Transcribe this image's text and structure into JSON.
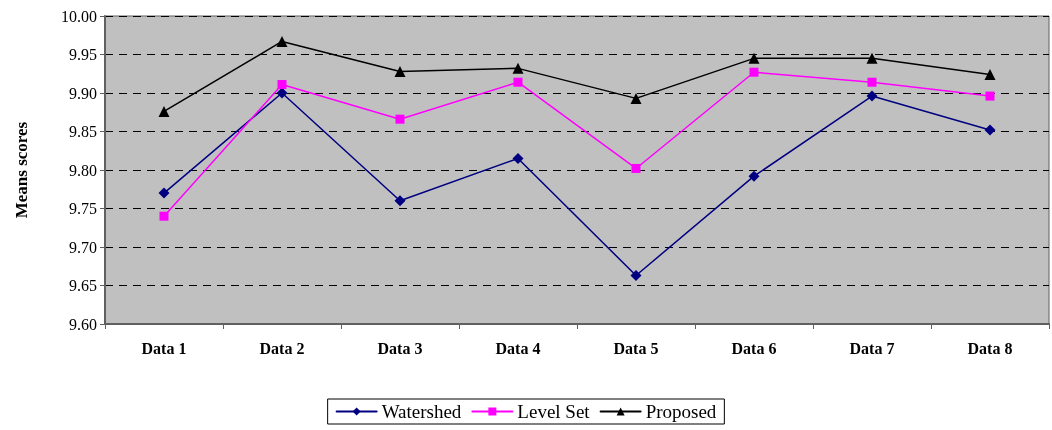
{
  "chart_data": {
    "type": "line",
    "ylabel": "Means scores",
    "categories": [
      "Data 1",
      "Data 2",
      "Data 3",
      "Data 4",
      "Data 5",
      "Data 6",
      "Data 7",
      "Data 8"
    ],
    "series": [
      {
        "name": "Watershed",
        "color": "#000080",
        "marker": "diamond",
        "values": [
          9.77,
          9.9,
          9.76,
          9.815,
          9.663,
          9.792,
          9.896,
          9.852
        ]
      },
      {
        "name": "Level Set",
        "color": "#ff00ff",
        "marker": "square",
        "values": [
          9.74,
          9.911,
          9.866,
          9.914,
          9.802,
          9.927,
          9.914,
          9.896
        ]
      },
      {
        "name": "Proposed",
        "color": "#000000",
        "marker": "triangle",
        "values": [
          9.876,
          9.967,
          9.928,
          9.932,
          9.893,
          9.945,
          9.945,
          9.924
        ]
      }
    ],
    "ylim": [
      9.6,
      10.0
    ],
    "yticks": [
      {
        "value": 9.6,
        "label": "9.60"
      },
      9.65,
      {
        "value": 9.7,
        "label": "9.70"
      },
      9.75,
      {
        "value": 9.8,
        "label": "9.80"
      },
      9.85,
      {
        "value": 9.9,
        "label": "9.90"
      },
      9.95,
      {
        "value": 10.0,
        "label": "10.00"
      }
    ],
    "grid": "y",
    "line_style": "solid",
    "legend": "bottom"
  }
}
